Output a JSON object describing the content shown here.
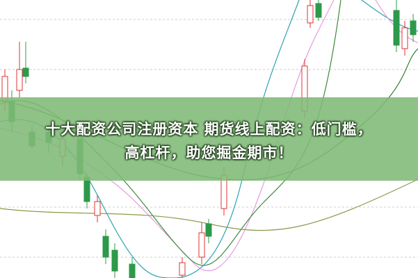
{
  "banner": {
    "lines": [
      "十大配资公司注册资本 期货线上配资：低门槛，",
      "高杠杆，助您掘金期市！"
    ]
  }
}
